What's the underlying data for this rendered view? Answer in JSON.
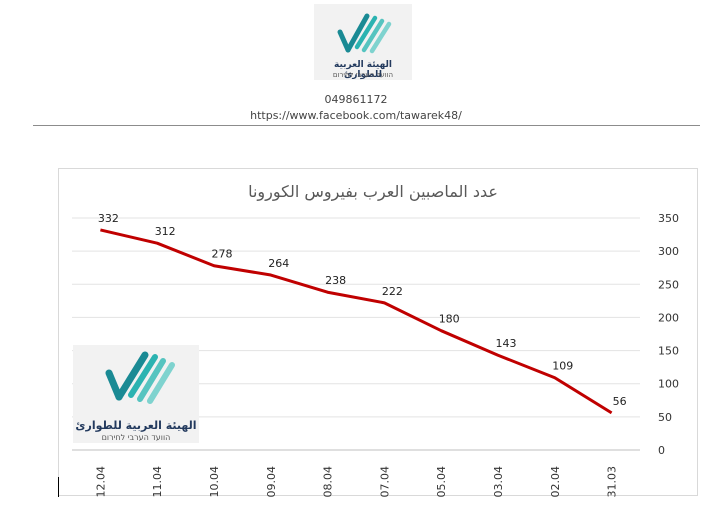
{
  "header": {
    "logo": {
      "name_ar": "الهيئة العربية للطوارئ",
      "name_he": "הוועד הערבי לחירום"
    },
    "phone": "049861172",
    "url": "https://www.facebook.com/tawarek48/"
  },
  "chart_logo": {
    "name_ar": "الهيئة العربية للطوارئ",
    "name_he": "הוועד הערבי לחירום"
  },
  "colors": {
    "series_line": "#c00000",
    "logo_teal_dark": "#1a8a94",
    "logo_teal": "#2bb3b1",
    "logo_teal_light": "#7fd3cf",
    "logo_navy": "#233a5e"
  },
  "chart_data": {
    "type": "line",
    "title": "عدد الماصبين العرب بفيروس الكورونا",
    "categories": [
      "12.04",
      "11.04",
      "10.04",
      "09.04",
      "08.04",
      "07.04",
      "05.04",
      "03.04",
      "02.04",
      "31.03"
    ],
    "series": [
      {
        "values": [
          332,
          312,
          278,
          264,
          238,
          222,
          180,
          143,
          109,
          56
        ]
      }
    ],
    "ylim": [
      0,
      350
    ],
    "yticks": [
      0,
      50,
      100,
      150,
      200,
      250,
      300,
      350
    ],
    "y_axis_side": "right",
    "grid": true,
    "data_labels": true,
    "legend": "none"
  }
}
